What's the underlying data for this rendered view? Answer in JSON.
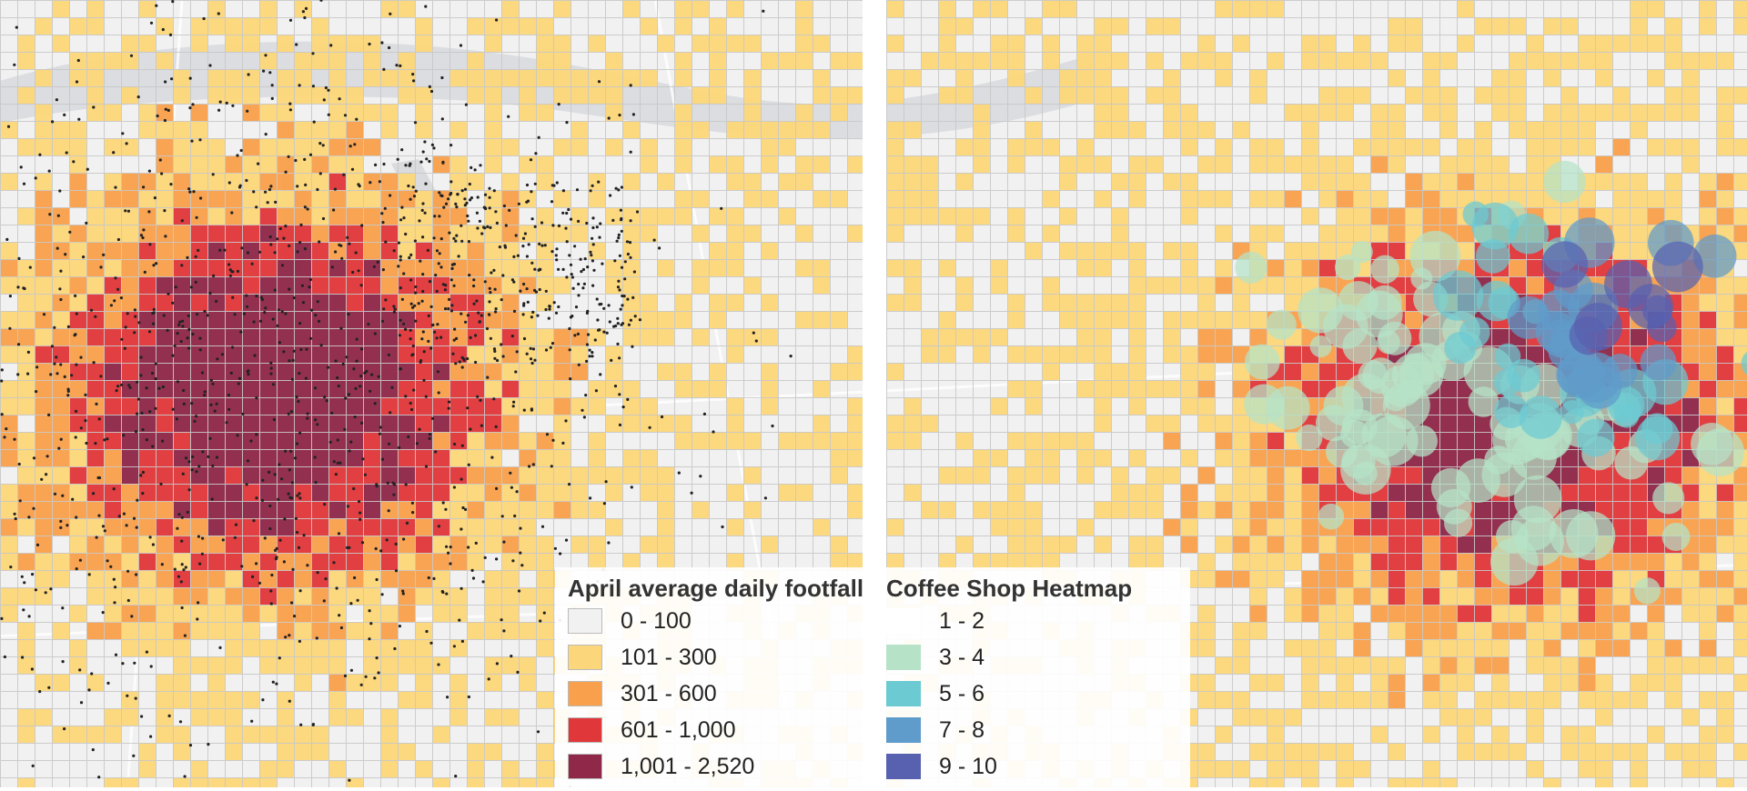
{
  "maps": {
    "footfall": {
      "legend": {
        "title": "April average daily footfall",
        "classes": [
          {
            "label": "0 - 100",
            "color": "#f1f1f1"
          },
          {
            "label": "101 - 300",
            "color": "#fcd67a"
          },
          {
            "label": "301 - 600",
            "color": "#f8a04c"
          },
          {
            "label": "601 - 1,000",
            "color": "#e0373a"
          },
          {
            "label": "1,001 - 2,520",
            "color": "#8f2849"
          }
        ]
      },
      "grid_color": "#c9c9c9",
      "point_color": "#222222",
      "water_color": "#d3d6d9"
    },
    "coffee": {
      "legend": {
        "title": "Coffee Shop Heatmap",
        "classes": [
          {
            "label": "1 - 2",
            "color": "#ffffff"
          },
          {
            "label": "3 - 4",
            "color": "#b6e3c8"
          },
          {
            "label": "5 - 6",
            "color": "#6ccbd2"
          },
          {
            "label": "7 - 8",
            "color": "#5f9bcb"
          },
          {
            "label": "9 - 10",
            "color": "#5761b0"
          }
        ]
      }
    }
  }
}
